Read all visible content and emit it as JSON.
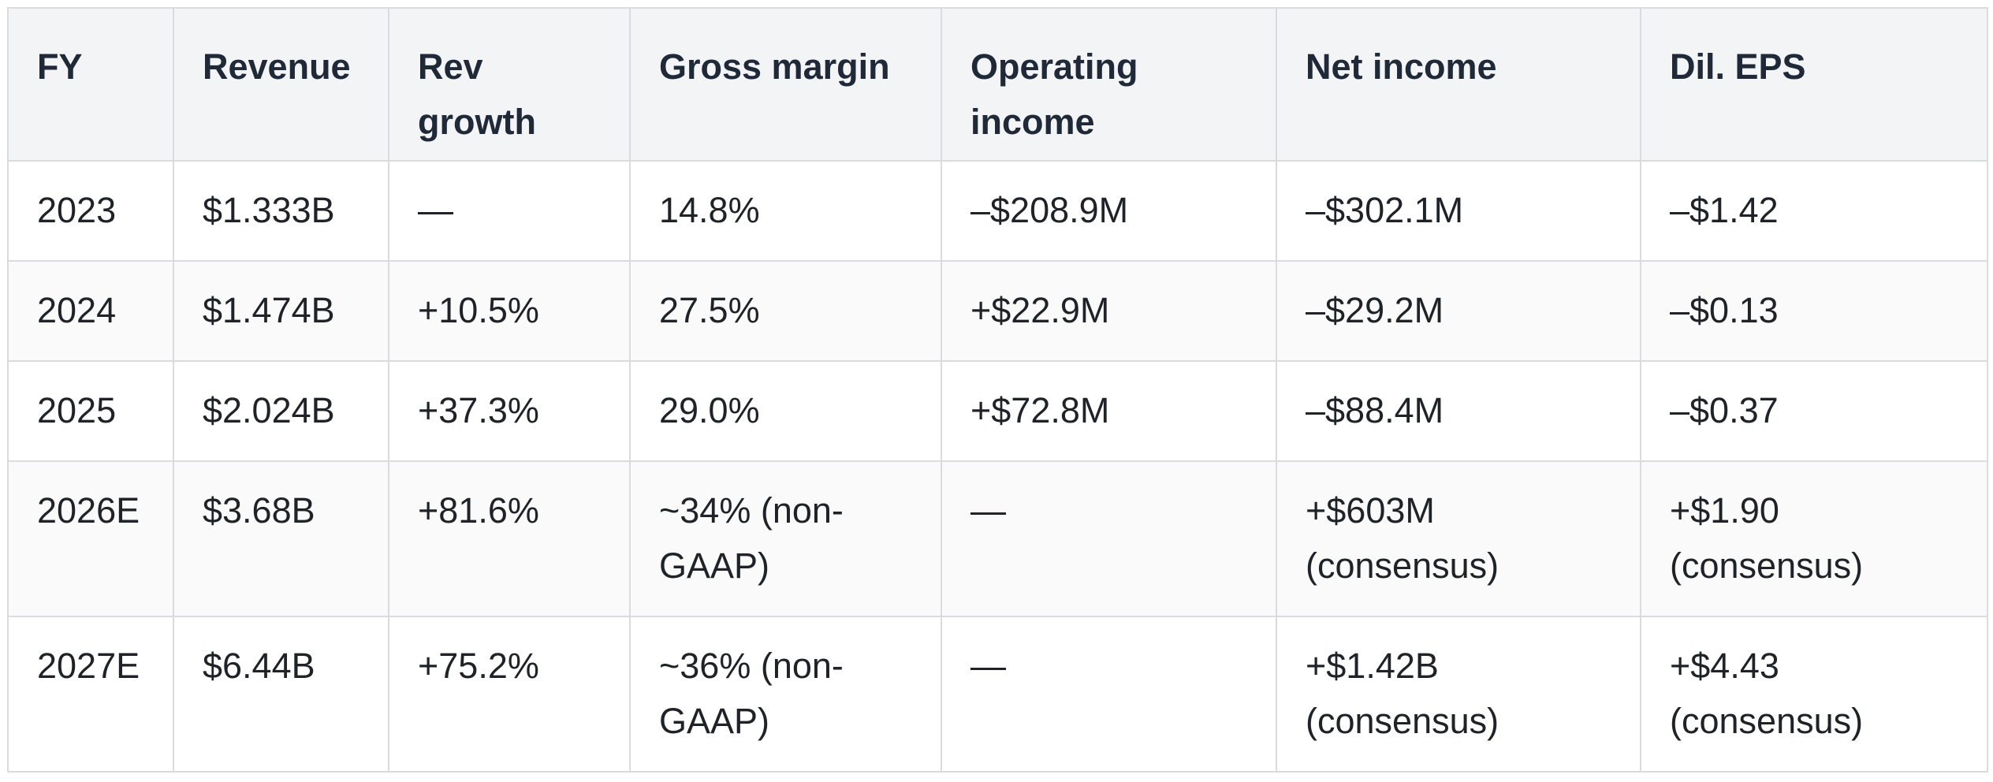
{
  "table": {
    "headers": [
      "FY",
      "Revenue",
      "Rev growth",
      "Gross margin",
      "Operating income",
      "Net income",
      "Dil. EPS"
    ],
    "rows": [
      [
        "2023",
        "$1.333B",
        "—",
        "14.8%",
        "–$208.9M",
        "–$302.1M",
        "–$1.42"
      ],
      [
        "2024",
        "$1.474B",
        "+10.5%",
        "27.5%",
        "+$22.9M",
        "–$29.2M",
        "–$0.13"
      ],
      [
        "2025",
        "$2.024B",
        "+37.3%",
        "29.0%",
        "+$72.8M",
        "–$88.4M",
        "–$0.37"
      ],
      [
        "2026E",
        "$3.68B",
        "+81.6%",
        "~34% (non-GAAP)",
        "—",
        "+$603M (consensus)",
        "+$1.90 (consensus)"
      ],
      [
        "2027E",
        "$6.44B",
        "+75.2%",
        "~36% (non-GAAP)",
        "—",
        "+$1.42B (consensus)",
        "+$4.43 (consensus)"
      ]
    ]
  },
  "colors": {
    "header_bg": "#f3f4f6",
    "border": "#d9dbde",
    "text": "#1f2328"
  }
}
